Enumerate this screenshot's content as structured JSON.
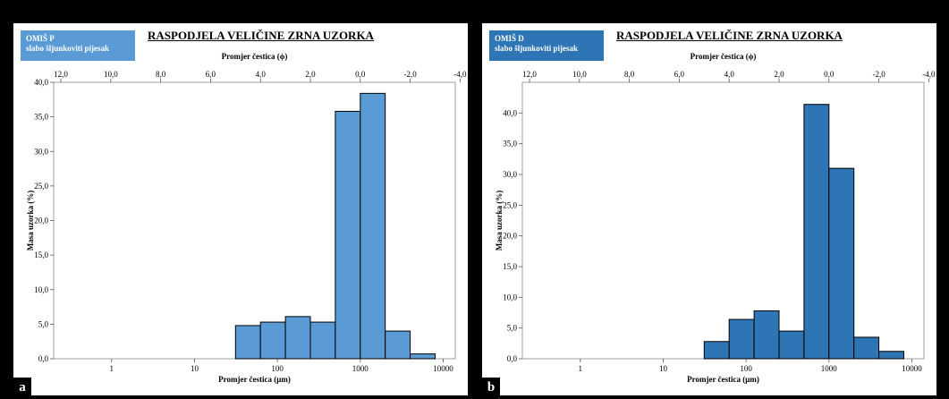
{
  "chart_data": [
    {
      "type": "bar",
      "panel_letter": "a",
      "sample_name": "OMIŠ P",
      "sample_description": "slabo šljunkoviti pijesak",
      "title": "RASPODJELA VELIČINE ZRNA UZORKA",
      "top_axis_label": "Promjer čestica (ϕ)",
      "top_ticks": [
        {
          "v": 12,
          "label": "12,0"
        },
        {
          "v": 10,
          "label": "10,0"
        },
        {
          "v": 8,
          "label": "8,0"
        },
        {
          "v": 6,
          "label": "6,0"
        },
        {
          "v": 4,
          "label": "4,0"
        },
        {
          "v": 2,
          "label": "2,0"
        },
        {
          "v": 0,
          "label": "0,0"
        },
        {
          "v": -2,
          "label": "-2,0"
        },
        {
          "v": -4,
          "label": "-4,0"
        }
      ],
      "xlabel": "Promjer čestica (μm)",
      "x_ticks": [
        {
          "v": 1,
          "label": "1"
        },
        {
          "v": 10,
          "label": "10"
        },
        {
          "v": 100,
          "label": "100"
        },
        {
          "v": 1000,
          "label": "1000"
        },
        {
          "v": 10000,
          "label": "10000"
        }
      ],
      "xlim": [
        0.2,
        14000
      ],
      "x_scale": "log",
      "ylabel": "Masa uzorka (%)",
      "ylim": [
        0,
        40
      ],
      "y_ticks": [
        0,
        5,
        10,
        15,
        20,
        25,
        30,
        35,
        40
      ],
      "y_tick_labels": [
        "0,0",
        "5,0",
        "10,0",
        "15,0",
        "20,0",
        "25,0",
        "30,0",
        "35,0",
        "40,0"
      ],
      "bars": [
        {
          "x_from": 31.25,
          "x_to": 62.5,
          "value": 4.8
        },
        {
          "x_from": 62.5,
          "x_to": 125,
          "value": 5.3
        },
        {
          "x_from": 125,
          "x_to": 250,
          "value": 6.1
        },
        {
          "x_from": 250,
          "x_to": 500,
          "value": 5.3
        },
        {
          "x_from": 500,
          "x_to": 1000,
          "value": 35.8
        },
        {
          "x_from": 1000,
          "x_to": 2000,
          "value": 38.4
        },
        {
          "x_from": 2000,
          "x_to": 4000,
          "value": 4.0
        },
        {
          "x_from": 4000,
          "x_to": 8000,
          "value": 0.7
        }
      ],
      "color": "#5b9bd5"
    },
    {
      "type": "bar",
      "panel_letter": "b",
      "sample_name": "OMIŠ D",
      "sample_description": "slabo šljunkoviti pijesak",
      "title": "RASPODJELA VELIČINE ZRNA UZORKA",
      "top_axis_label": "Promjer čestica (ϕ)",
      "top_ticks": [
        {
          "v": 12,
          "label": "12,0"
        },
        {
          "v": 10,
          "label": "10,0"
        },
        {
          "v": 8,
          "label": "8,0"
        },
        {
          "v": 6,
          "label": "6,0"
        },
        {
          "v": 4,
          "label": "4,0"
        },
        {
          "v": 2,
          "label": "2,0"
        },
        {
          "v": 0,
          "label": "0,0"
        },
        {
          "v": -2,
          "label": "-2,0"
        },
        {
          "v": -4,
          "label": "-4,0"
        }
      ],
      "xlabel": "Promjer čestica (μm)",
      "x_ticks": [
        {
          "v": 1,
          "label": "1"
        },
        {
          "v": 10,
          "label": "10"
        },
        {
          "v": 100,
          "label": "100"
        },
        {
          "v": 1000,
          "label": "1000"
        },
        {
          "v": 10000,
          "label": "10000"
        }
      ],
      "xlim": [
        0.2,
        14000
      ],
      "x_scale": "log",
      "ylabel": "Masa uzorka (%)",
      "ylim": [
        0,
        45
      ],
      "y_ticks": [
        0,
        5,
        10,
        15,
        20,
        25,
        30,
        35,
        40
      ],
      "y_tick_labels": [
        "0,0",
        "5,0",
        "10,0",
        "15,0",
        "20,0",
        "25,0",
        "30,0",
        "35,0",
        "40,0"
      ],
      "bars": [
        {
          "x_from": 31.25,
          "x_to": 62.5,
          "value": 2.8
        },
        {
          "x_from": 62.5,
          "x_to": 125,
          "value": 6.4
        },
        {
          "x_from": 125,
          "x_to": 250,
          "value": 7.8
        },
        {
          "x_from": 250,
          "x_to": 500,
          "value": 4.5
        },
        {
          "x_from": 500,
          "x_to": 1000,
          "value": 41.4
        },
        {
          "x_from": 1000,
          "x_to": 2000,
          "value": 31.0
        },
        {
          "x_from": 2000,
          "x_to": 4000,
          "value": 3.5
        },
        {
          "x_from": 4000,
          "x_to": 8000,
          "value": 1.2
        }
      ],
      "color": "#2e75b6"
    }
  ]
}
